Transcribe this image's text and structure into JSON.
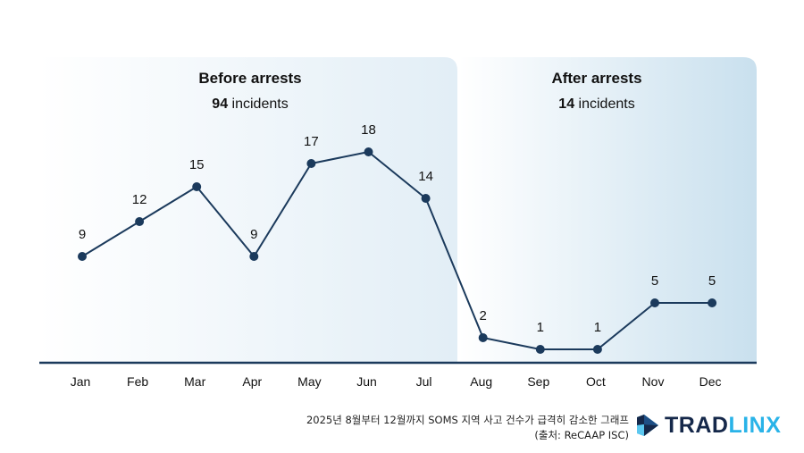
{
  "chart_data": {
    "type": "line",
    "title": "",
    "xlabel": "",
    "ylabel": "",
    "categories": [
      "Jan",
      "Feb",
      "Mar",
      "Apr",
      "May",
      "Jun",
      "Jul",
      "Aug",
      "Sep",
      "Oct",
      "Nov",
      "Dec"
    ],
    "values": [
      9,
      12,
      15,
      9,
      17,
      18,
      14,
      2,
      1,
      1,
      5,
      5
    ],
    "data_labels": [
      "9",
      "12",
      "15",
      "9",
      "17",
      "18",
      "14",
      "2",
      "1",
      "1",
      "5",
      "5"
    ],
    "ylim": [
      0,
      20
    ],
    "grid": false,
    "legend": "none",
    "line_color": "#1b3a5c",
    "panels": [
      {
        "title": "Before arrests",
        "count": "94",
        "unit": " incidents",
        "months": [
          "Jan",
          "Jul"
        ]
      },
      {
        "title": "After arrests",
        "count": "14",
        "unit": " incidents",
        "months": [
          "Aug",
          "Dec"
        ]
      }
    ]
  },
  "caption": {
    "line1": "2025년 8월부터 12월까지 SOMS 지역 사고 건수가 급격히 감소한 그래프",
    "line2": "(출처: ReCAAP ISC)"
  },
  "logo": {
    "text_a": "TRAD",
    "text_b": "LINX",
    "color_a": "#15284a",
    "color_b": "#29b3e8"
  }
}
